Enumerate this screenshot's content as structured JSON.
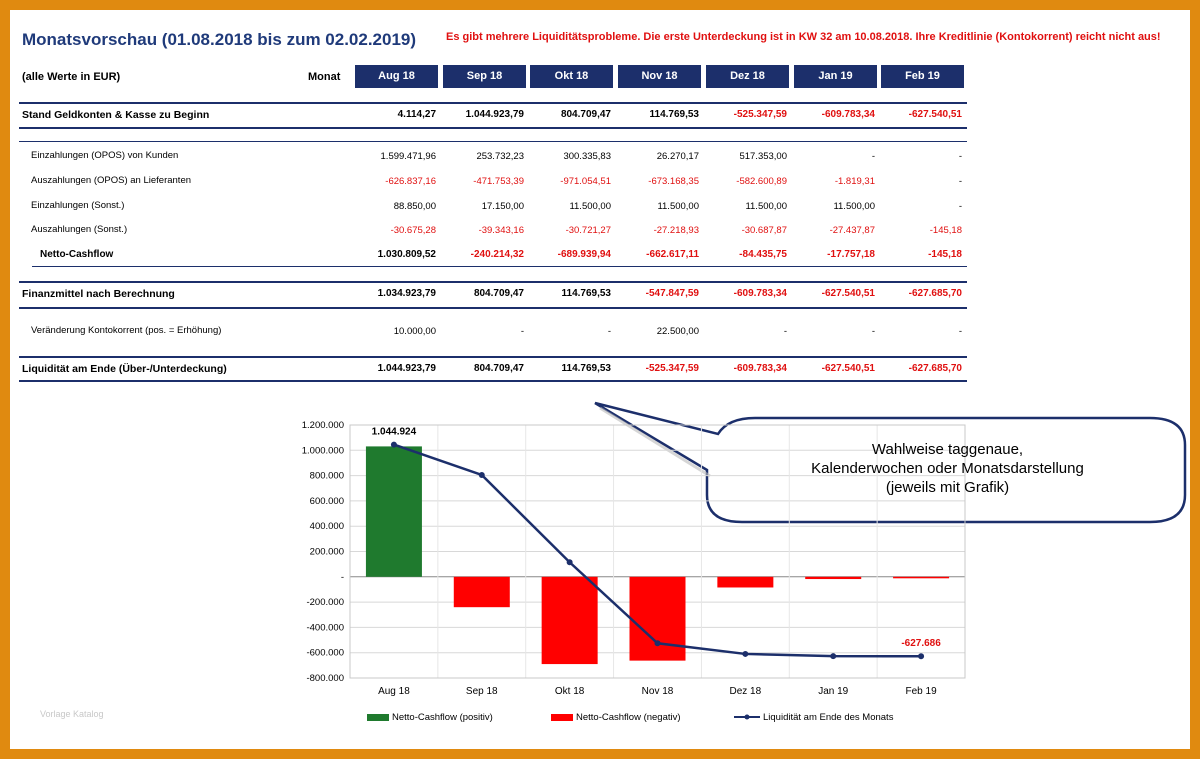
{
  "title": "Monatsvorschau  (01.08.2018 bis zum 02.02.2019)",
  "warning": "Es gibt mehrere Liquiditätsprobleme. Die erste Unterdeckung ist in KW 32 am 10.08.2018. Ihre Kreditlinie (Kontokorrent) reicht nicht aus!",
  "unit_label": "(alle Werte in EUR)",
  "month_label": "Monat",
  "months": [
    "Aug 18",
    "Sep 18",
    "Okt 18",
    "Nov 18",
    "Dez 18",
    "Jan 19",
    "Feb 19"
  ],
  "rows": [
    {
      "label": "Stand Geldkonten & Kasse zu Beginn",
      "style": "bold",
      "values": [
        "4.114,27",
        "1.044.923,79",
        "804.709,47",
        "114.769,53",
        "-525.347,59",
        "-609.783,34",
        "-627.540,51"
      ]
    },
    {
      "label": "Einzahlungen (OPOS) von Kunden",
      "style": "indent",
      "values": [
        "1.599.471,96",
        "253.732,23",
        "300.335,83",
        "26.270,17",
        "517.353,00",
        "-",
        "-"
      ]
    },
    {
      "label": "Auszahlungen (OPOS) an Lieferanten",
      "style": "indent",
      "values": [
        "-626.837,16",
        "-471.753,39",
        "-971.054,51",
        "-673.168,35",
        "-582.600,89",
        "-1.819,31",
        "-"
      ]
    },
    {
      "label": "Einzahlungen (Sonst.)",
      "style": "indent",
      "values": [
        "88.850,00",
        "17.150,00",
        "11.500,00",
        "11.500,00",
        "11.500,00",
        "11.500,00",
        "-"
      ]
    },
    {
      "label": "Auszahlungen (Sonst.)",
      "style": "indent",
      "values": [
        "-30.675,28",
        "-39.343,16",
        "-30.721,27",
        "-27.218,93",
        "-30.687,87",
        "-27.437,87",
        "-145,18"
      ]
    },
    {
      "label": "Netto-Cashflow",
      "style": "indent2",
      "values": [
        "1.030.809,52",
        "-240.214,32",
        "-689.939,94",
        "-662.617,11",
        "-84.435,75",
        "-17.757,18",
        "-145,18"
      ]
    },
    {
      "label": "Finanzmittel nach Berechnung",
      "style": "bold",
      "values": [
        "1.034.923,79",
        "804.709,47",
        "114.769,53",
        "-547.847,59",
        "-609.783,34",
        "-627.540,51",
        "-627.685,70"
      ]
    },
    {
      "label": "Veränderung Kontokorrent (pos. = Erhöhung)",
      "style": "indent",
      "values": [
        "10.000,00",
        "-",
        "-",
        "22.500,00",
        "-",
        "-",
        "-"
      ]
    },
    {
      "label": "Liquidität am Ende (Über-/Unterdeckung)",
      "style": "bold",
      "values": [
        "1.044.923,79",
        "804.709,47",
        "114.769,53",
        "-525.347,59",
        "-609.783,34",
        "-627.540,51",
        "-627.685,70"
      ]
    }
  ],
  "callout": {
    "line1": "Wahlweise taggenaue,",
    "line2": "Kalenderwochen oder Monatsdarstellung",
    "line3": "(jeweils mit Grafik)"
  },
  "watermark": "Vorlage Katalog",
  "colors": {
    "positive": "#1f7a2e",
    "negative": "#ff0000",
    "line": "#1c2f6b",
    "header": "#1c2f6b",
    "frame": "#e08a10"
  },
  "chart_data": {
    "type": "bar",
    "categories": [
      "Aug 18",
      "Sep 18",
      "Okt 18",
      "Nov 18",
      "Dez 18",
      "Jan 19",
      "Feb 19"
    ],
    "ylim": [
      -800000,
      1200000
    ],
    "yticks": [
      "1.200.000",
      "1.000.000",
      "800.000",
      "600.000",
      "400.000",
      "200.000",
      "-",
      "-200.000",
      "-400.000",
      "-600.000",
      "-800.000"
    ],
    "series": [
      {
        "name": "Netto-Cashflow (positiv)",
        "type": "bar",
        "values": [
          1030810,
          0,
          0,
          0,
          0,
          0,
          0
        ]
      },
      {
        "name": "Netto-Cashflow (negativ)",
        "type": "bar",
        "values": [
          0,
          -240214,
          -689940,
          -662617,
          -84436,
          -17757,
          -145
        ]
      },
      {
        "name": "Liquidität am Ende des Monats",
        "type": "line",
        "values": [
          1044924,
          804709,
          114770,
          -525348,
          -609783,
          -627541,
          -627686
        ]
      }
    ],
    "data_labels": [
      {
        "series": 2,
        "index": 0,
        "text": "1.044.924"
      },
      {
        "series": 2,
        "index": 6,
        "text": "-627.686"
      }
    ]
  }
}
